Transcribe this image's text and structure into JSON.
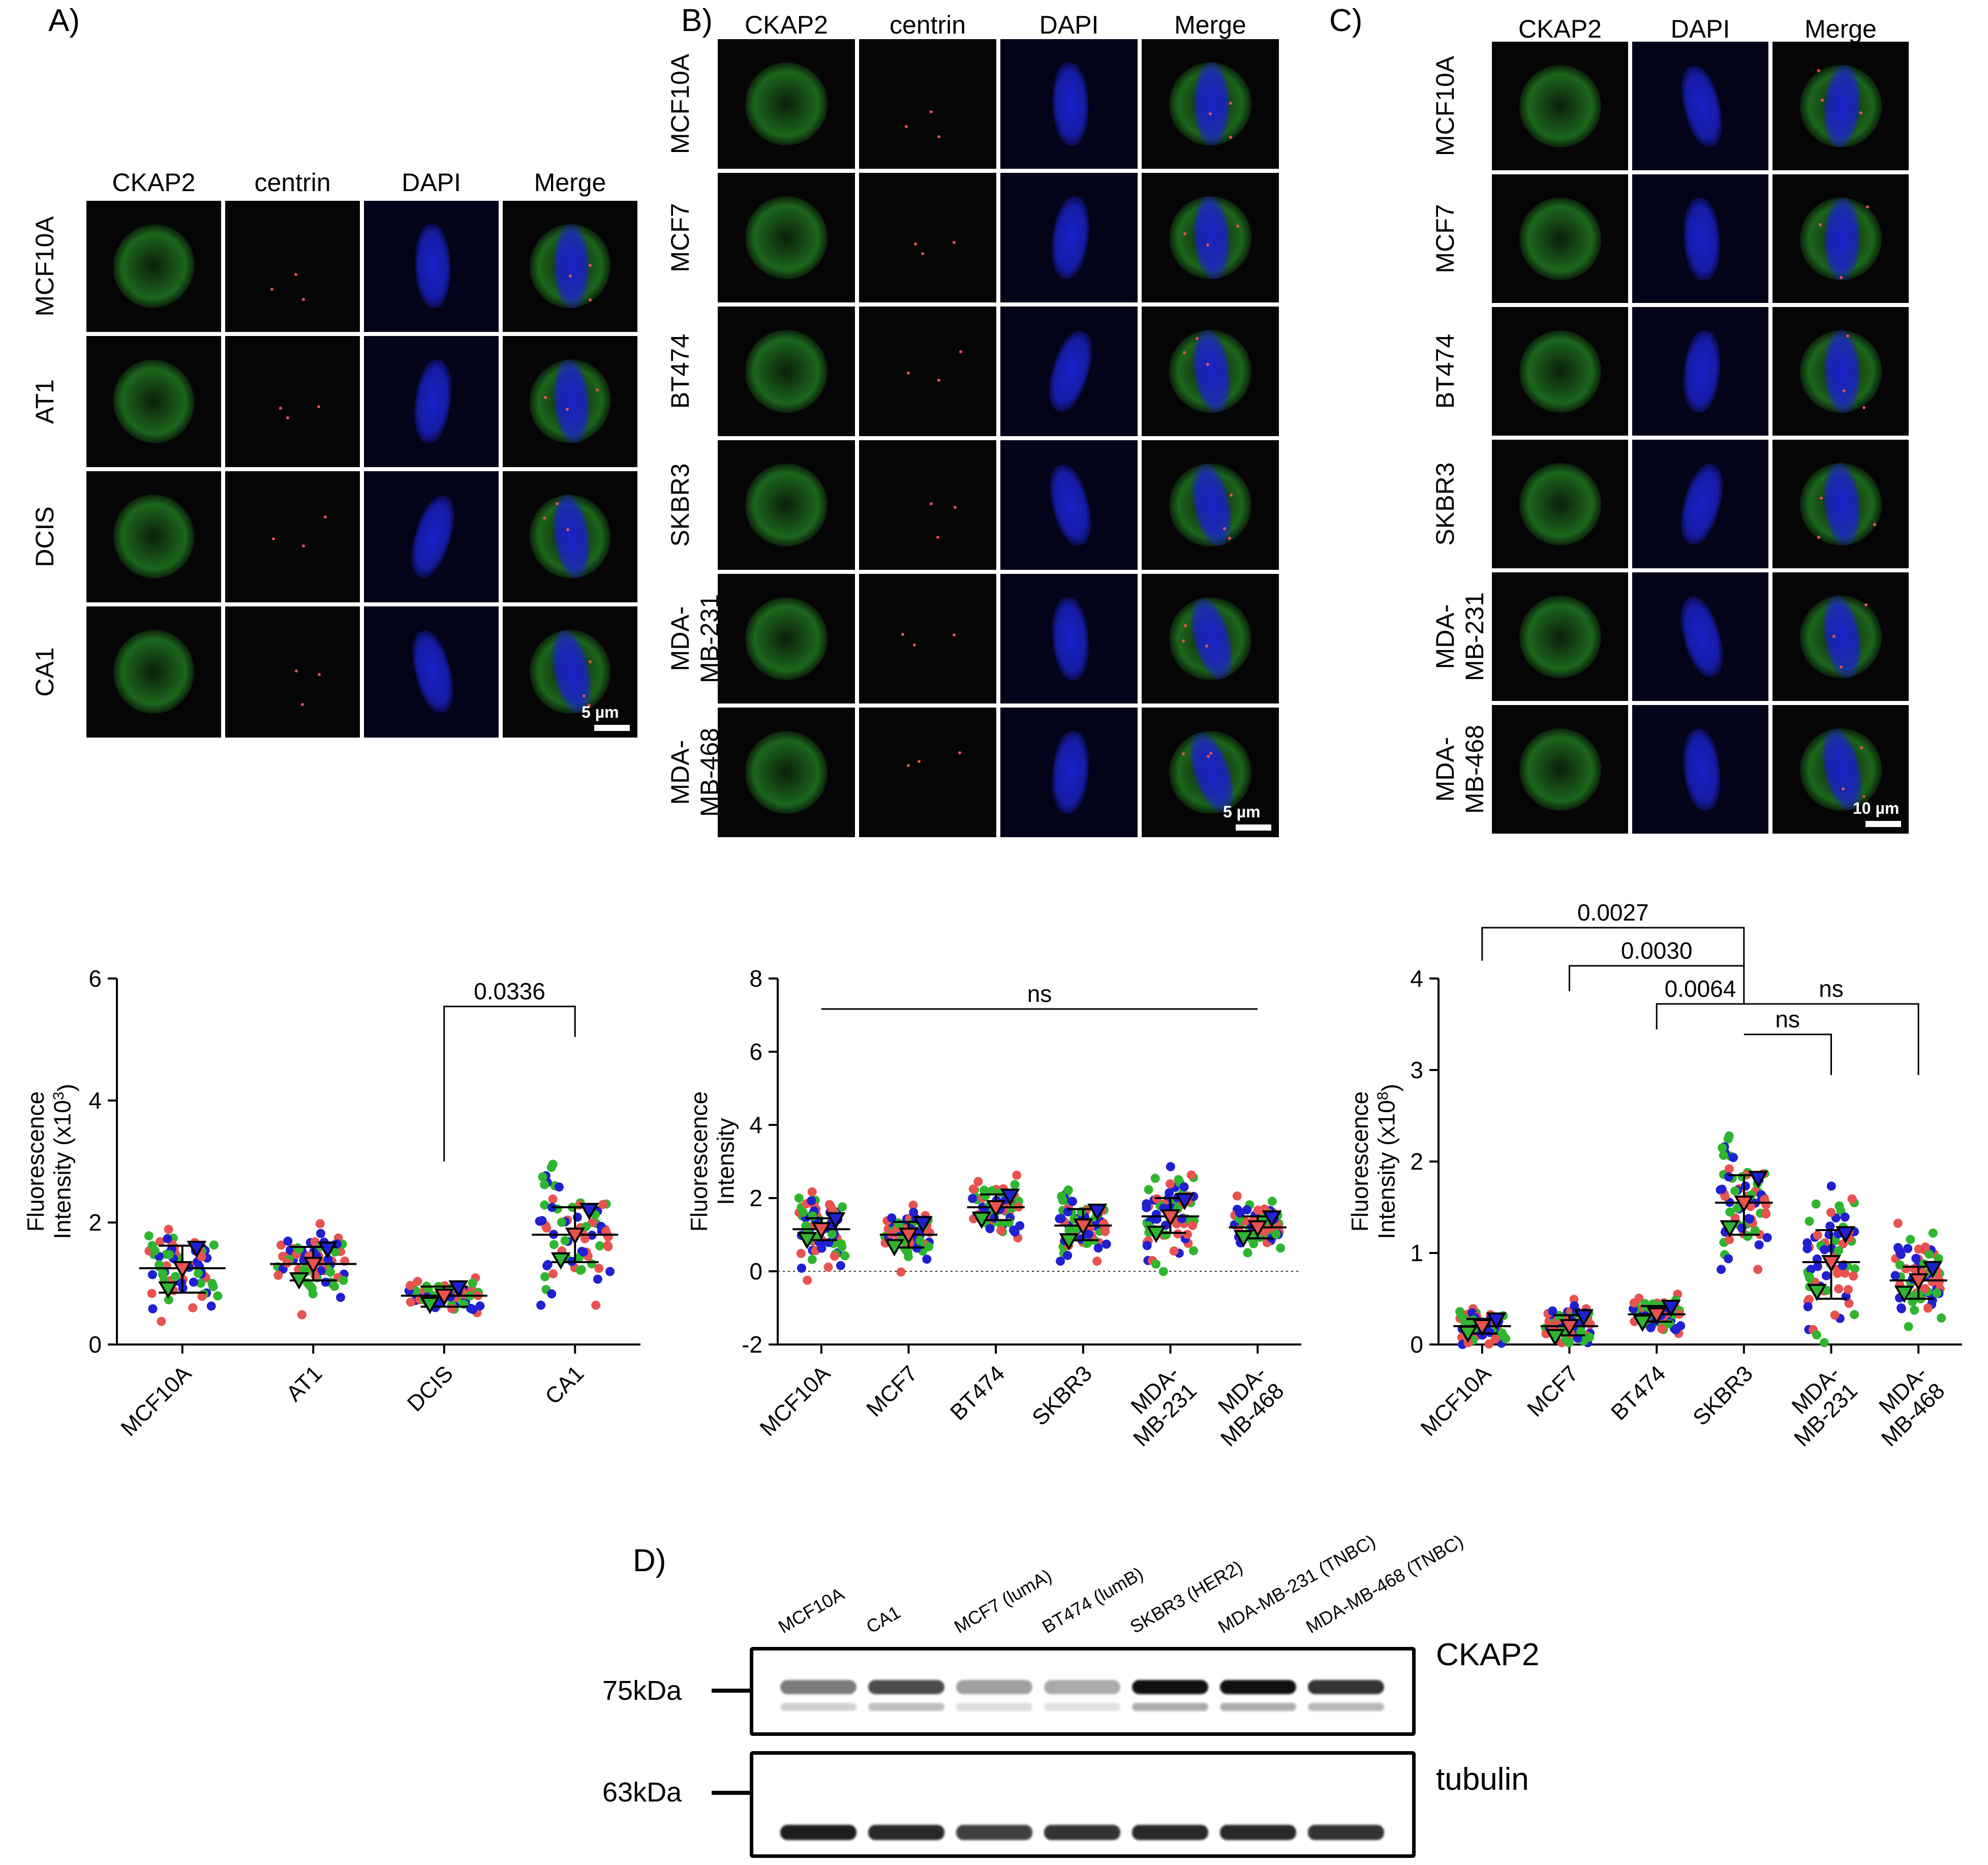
{
  "panelA": {
    "letter": "A)",
    "columns": [
      "CKAP2",
      "centrin",
      "DAPI",
      "Merge"
    ],
    "rows": [
      "MCF10A",
      "AT1",
      "DCIS",
      "CA1"
    ],
    "scale": "5 µm"
  },
  "panelB": {
    "letter": "B)",
    "columns": [
      "CKAP2",
      "centrin",
      "DAPI",
      "Merge"
    ],
    "rows": [
      "MCF10A",
      "MCF7",
      "BT474",
      "SKBR3",
      "MDA-\nMB-231",
      "MDA-\nMB-468"
    ],
    "scale": "5 µm"
  },
  "panelC": {
    "letter": "C)",
    "columns": [
      "CKAP2",
      "DAPI",
      "Merge"
    ],
    "rows": [
      "MCF10A",
      "MCF7",
      "BT474",
      "SKBR3",
      "MDA-\nMB-231",
      "MDA-\nMB-468"
    ],
    "scale": "10 µm"
  },
  "colors": {
    "green": "#2fb52f",
    "red": "#e8524f",
    "blue": "#2020d0",
    "dapi": "#1a22c8"
  },
  "chart_data": [
    {
      "type": "scatter",
      "categories": [
        "MCF10A",
        "AT1",
        "DCIS",
        "CA1"
      ],
      "ylabel_line1": "Fluorescence",
      "ylabel_line2": "Intensity (x10",
      "ylabel_sup": "3",
      "ylabel_end": ")",
      "ylim": [
        0,
        6
      ],
      "yticks": [
        0,
        2,
        4,
        6
      ],
      "means": [
        1.25,
        1.32,
        0.8,
        1.8
      ],
      "sd_low": [
        0.85,
        1.05,
        0.62,
        1.35
      ],
      "sd_high": [
        1.62,
        1.6,
        0.95,
        2.25
      ],
      "spread": [
        0.5,
        0.45,
        0.2,
        0.95
      ],
      "annotations": [
        {
          "text": "0.0336",
          "from": 2,
          "to": 3
        }
      ]
    },
    {
      "type": "scatter",
      "categories": [
        "MCF10A",
        "MCF7",
        "BT474",
        "SKBR3",
        "MDA-\nMB-231",
        "MDA-\nMB-468"
      ],
      "ylabel_line1": "Fluorescence",
      "ylabel_line2": "Intensity",
      "ylim": [
        -2,
        8
      ],
      "yticks": [
        -2,
        0,
        2,
        4,
        6,
        8
      ],
      "means": [
        1.15,
        1.0,
        1.75,
        1.25,
        1.5,
        1.2
      ],
      "sd_low": [
        0.85,
        0.65,
        1.4,
        0.85,
        1.05,
        0.9
      ],
      "sd_high": [
        1.45,
        1.35,
        2.1,
        1.7,
        2.0,
        1.5
      ],
      "spread": [
        0.8,
        0.55,
        0.6,
        0.8,
        0.9,
        0.55
      ],
      "annotations": [
        {
          "text": "ns",
          "from": 0,
          "to": 5
        }
      ]
    },
    {
      "type": "scatter",
      "categories": [
        "MCF10A",
        "MCF7",
        "BT474",
        "SKBR3",
        "MDA-\nMB-231",
        "MDA-\nMB-468"
      ],
      "ylabel_line1": "Fluorescence",
      "ylabel_line2": "Intensity (x10",
      "ylabel_sup": "8",
      "ylabel_end": ")",
      "ylim": [
        0,
        4
      ],
      "yticks": [
        0,
        1,
        2,
        3,
        4
      ],
      "means": [
        0.2,
        0.2,
        0.33,
        1.55,
        0.9,
        0.7
      ],
      "sd_low": [
        0.12,
        0.1,
        0.25,
        1.2,
        0.5,
        0.5
      ],
      "sd_high": [
        0.28,
        0.32,
        0.42,
        1.85,
        1.25,
        0.85
      ],
      "spread": [
        0.15,
        0.2,
        0.15,
        0.6,
        0.55,
        0.4
      ],
      "annotations": [
        {
          "text": "0.0027",
          "from": 0,
          "to": 3
        },
        {
          "text": "0.0030",
          "from": 1,
          "to": 3
        },
        {
          "text": "0.0064",
          "from": 2,
          "to": 3
        },
        {
          "text": "ns",
          "from": 3,
          "to": 4
        },
        {
          "text": "ns",
          "from": 3,
          "to": 5
        }
      ]
    }
  ],
  "panelD": {
    "letter": "D)",
    "lanes": [
      "MCF10A",
      "CA1",
      "MCF7 (lumA)",
      "BT474 (lumB)",
      "SKBR3 (HER2)",
      "MDA-MB-231 (TNBC)",
      "MDA-MB-468 (TNBC)"
    ],
    "blots": [
      {
        "name": "CKAP2",
        "marker": "75kDa",
        "intensity": [
          0.55,
          0.75,
          0.4,
          0.35,
          1.0,
          1.0,
          0.85
        ]
      },
      {
        "name": "tubulin",
        "marker": "63kDa",
        "intensity": [
          0.95,
          0.9,
          0.8,
          0.85,
          0.9,
          0.9,
          0.85
        ]
      }
    ]
  }
}
